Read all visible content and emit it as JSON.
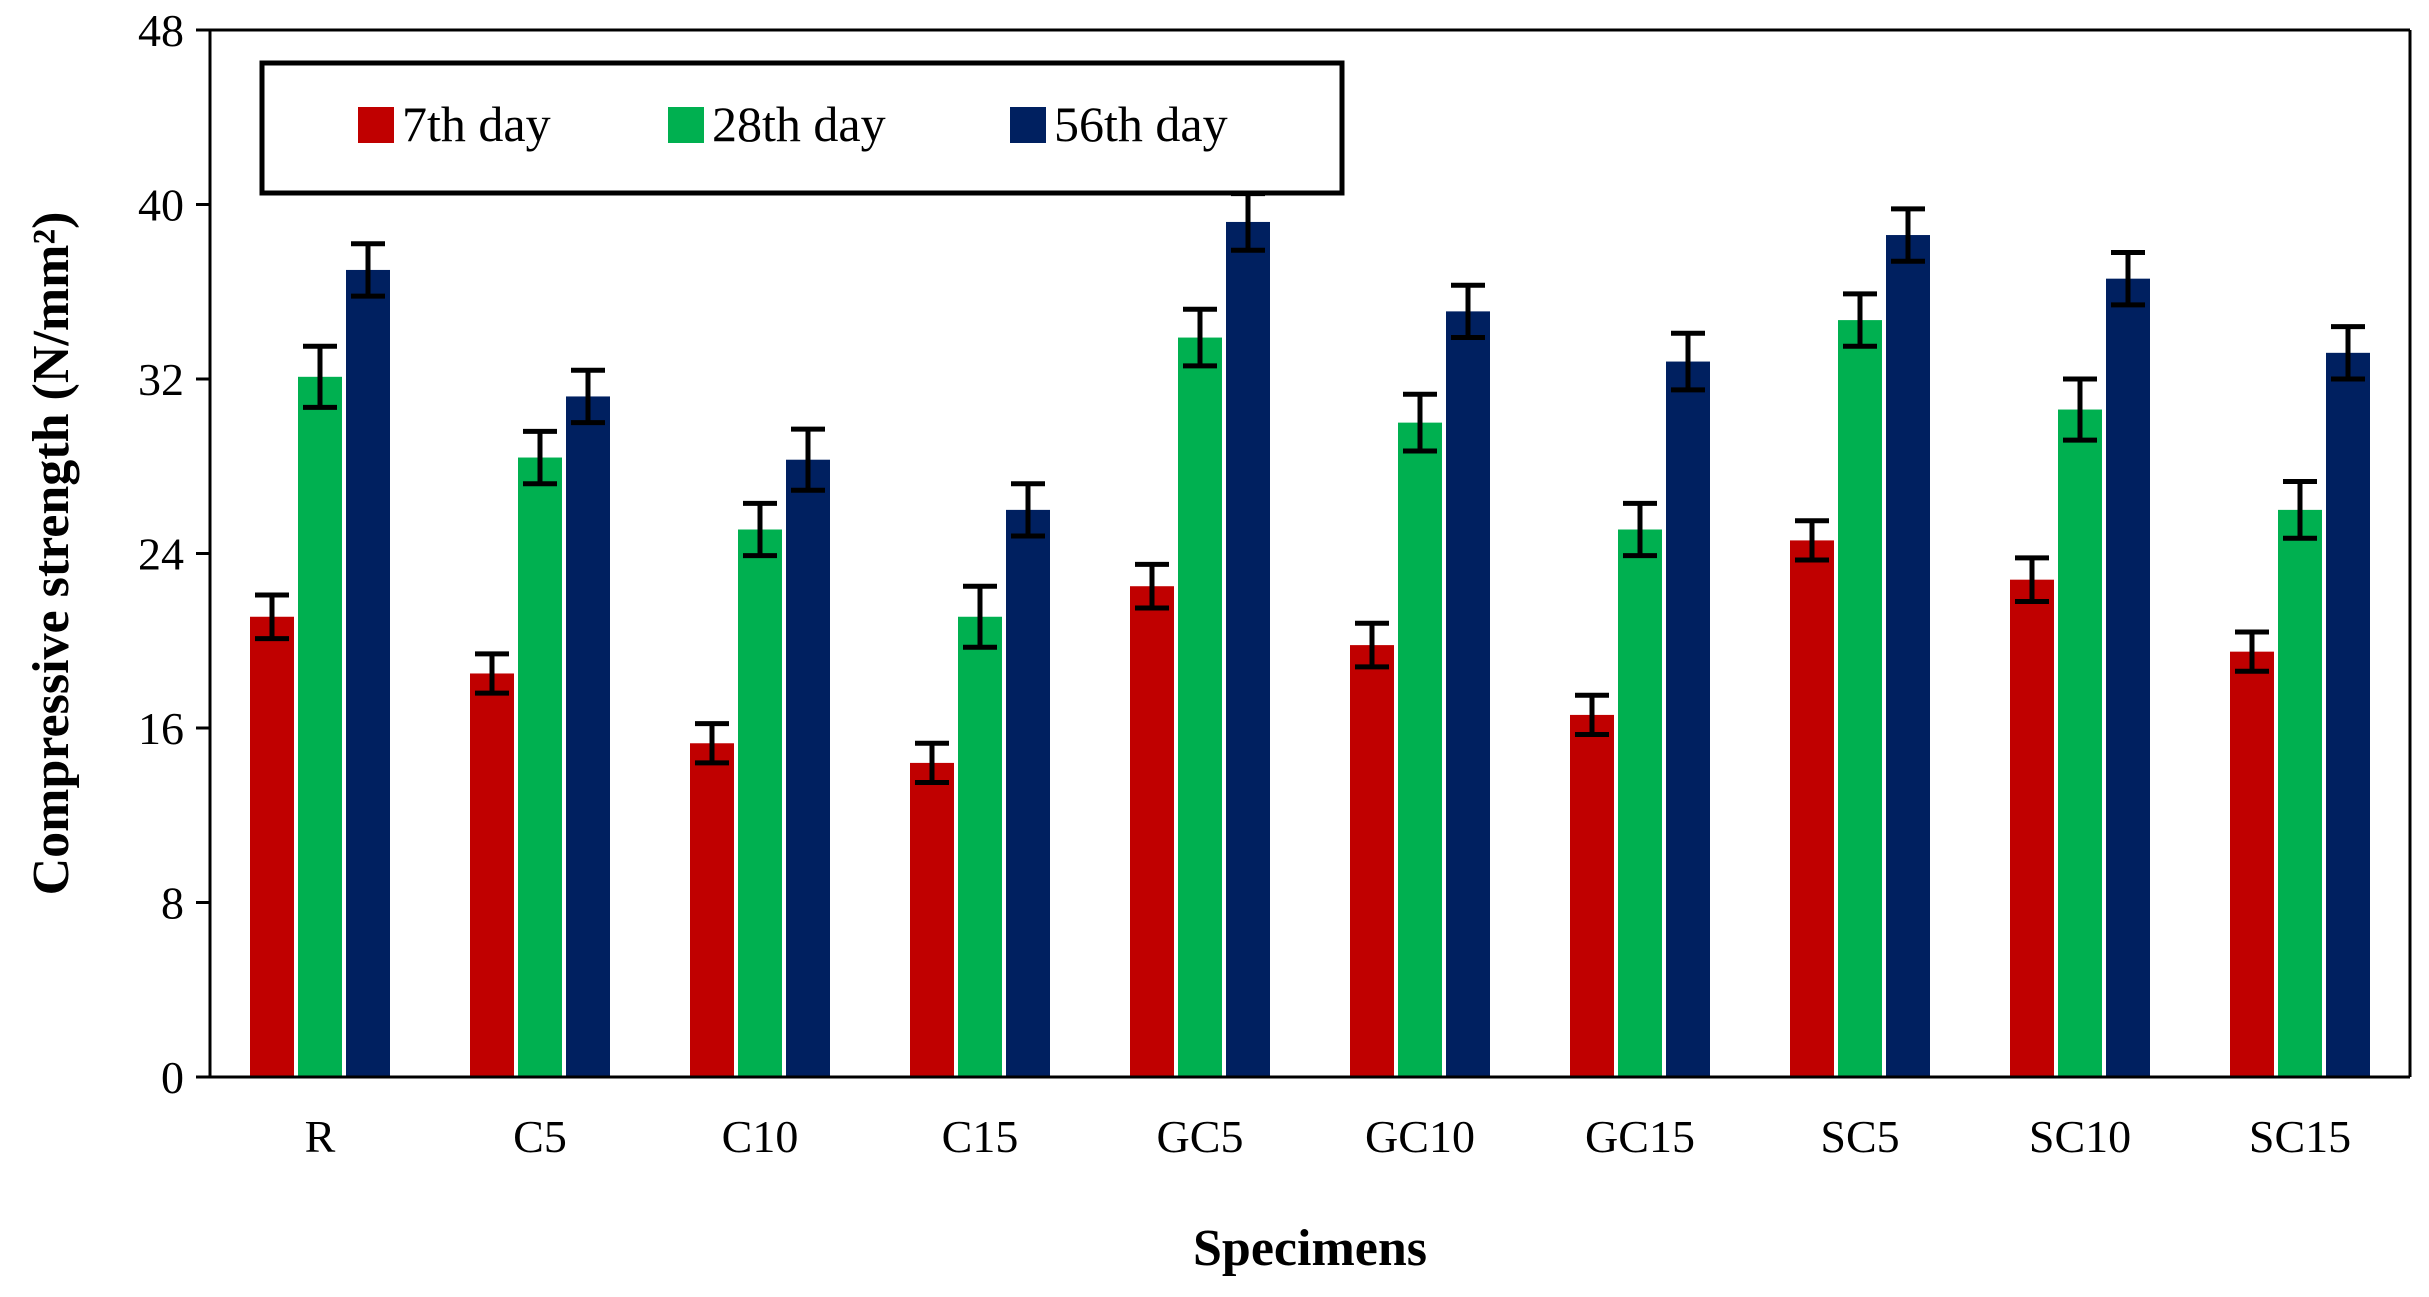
{
  "chart_data": {
    "type": "bar",
    "title": "",
    "xlabel": "Specimens",
    "ylabel": "Compressive strength (N/mm²)",
    "ylim": [
      0,
      48
    ],
    "yticks": [
      "0",
      "8",
      "16",
      "24",
      "32",
      "40",
      "48"
    ],
    "grid": false,
    "legend_position": "top-left",
    "categories": [
      "R",
      "C5",
      "C10",
      "C15",
      "GC5",
      "GC10",
      "GC15",
      "SC5",
      "SC10",
      "SC15"
    ],
    "series": [
      {
        "name": "7th day",
        "color": "#c00000",
        "values": [
          21.1,
          18.5,
          15.3,
          14.4,
          22.5,
          19.8,
          16.6,
          24.6,
          22.8,
          19.5
        ],
        "errors": [
          1.0,
          0.9,
          0.9,
          0.9,
          1.0,
          1.0,
          0.9,
          0.9,
          1.0,
          0.9
        ]
      },
      {
        "name": "28th day",
        "color": "#00b050",
        "values": [
          32.1,
          28.4,
          25.1,
          21.1,
          33.9,
          30.0,
          25.1,
          34.7,
          30.6,
          26.0
        ],
        "errors": [
          1.4,
          1.2,
          1.2,
          1.4,
          1.3,
          1.3,
          1.2,
          1.2,
          1.4,
          1.3
        ]
      },
      {
        "name": "56th day",
        "color": "#002060",
        "values": [
          37.0,
          31.2,
          28.3,
          26.0,
          39.2,
          35.1,
          32.8,
          38.6,
          36.6,
          33.2
        ],
        "errors": [
          1.2,
          1.2,
          1.4,
          1.2,
          1.3,
          1.2,
          1.3,
          1.2,
          1.2,
          1.2
        ]
      }
    ]
  }
}
